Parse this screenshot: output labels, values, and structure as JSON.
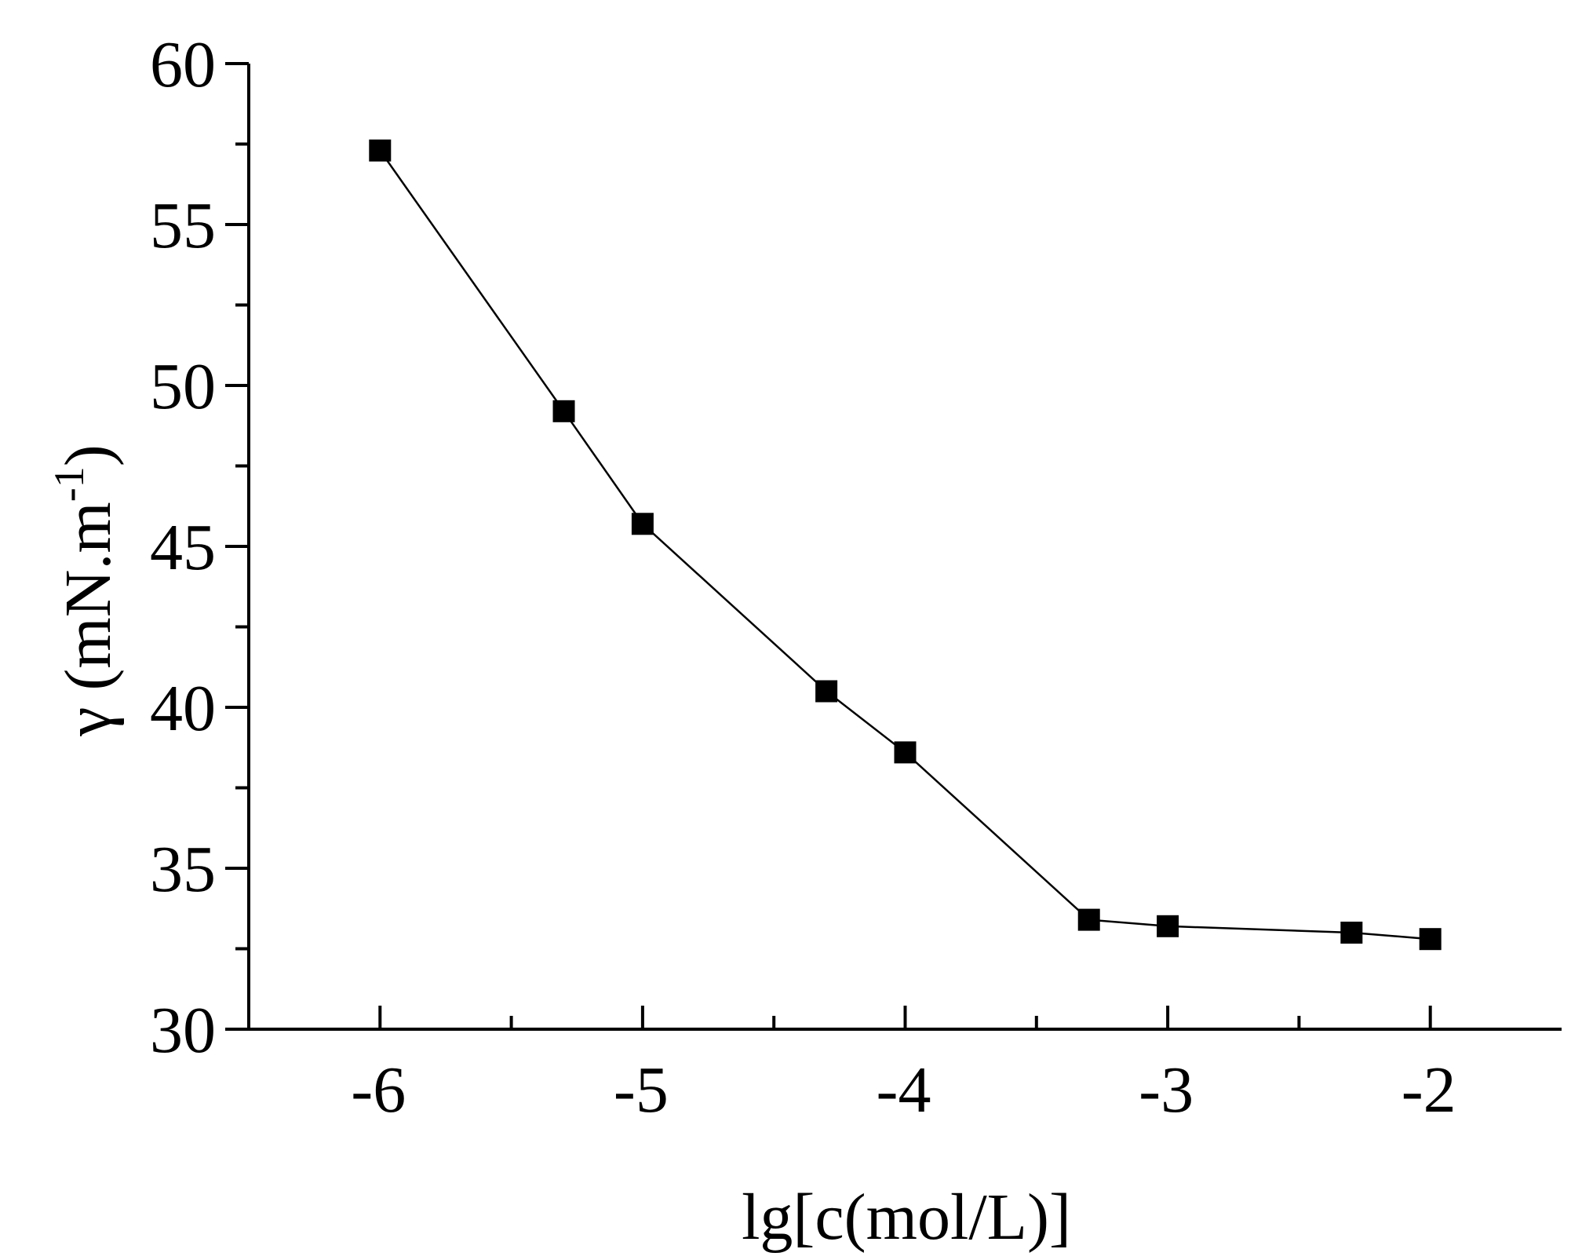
{
  "chart_data": {
    "type": "line",
    "title": "",
    "xlabel": "lg[c(mol/L)]",
    "ylabel": {
      "base": "γ (mN.m",
      "superscript": "-1",
      "close": ")"
    },
    "xlim": [
      -6.5,
      -1.5
    ],
    "ylim": [
      30,
      60
    ],
    "x_ticks": [
      -6,
      -5,
      -4,
      -3,
      -2
    ],
    "x_tick_labels": [
      "-6",
      "-5",
      "-4",
      "-3",
      "-2"
    ],
    "x_minor_ticks": [
      -5.5,
      -4.5,
      -3.5,
      -2.5
    ],
    "y_ticks": [
      30,
      35,
      40,
      45,
      50,
      55,
      60
    ],
    "y_tick_labels": [
      "30",
      "35",
      "40",
      "45",
      "50",
      "55",
      "60"
    ],
    "y_minor_ticks": [
      32.5,
      37.5,
      42.5,
      47.5,
      52.5,
      57.5
    ],
    "grid": false,
    "series": [
      {
        "marker": "square",
        "color": "#000000",
        "x": [
          -6.0,
          -5.3,
          -5.0,
          -4.3,
          -4.0,
          -3.3,
          -3.0,
          -2.3,
          -2.0
        ],
        "y": [
          57.3,
          49.2,
          45.7,
          40.5,
          38.6,
          33.4,
          33.2,
          33.0,
          32.8
        ]
      }
    ]
  }
}
